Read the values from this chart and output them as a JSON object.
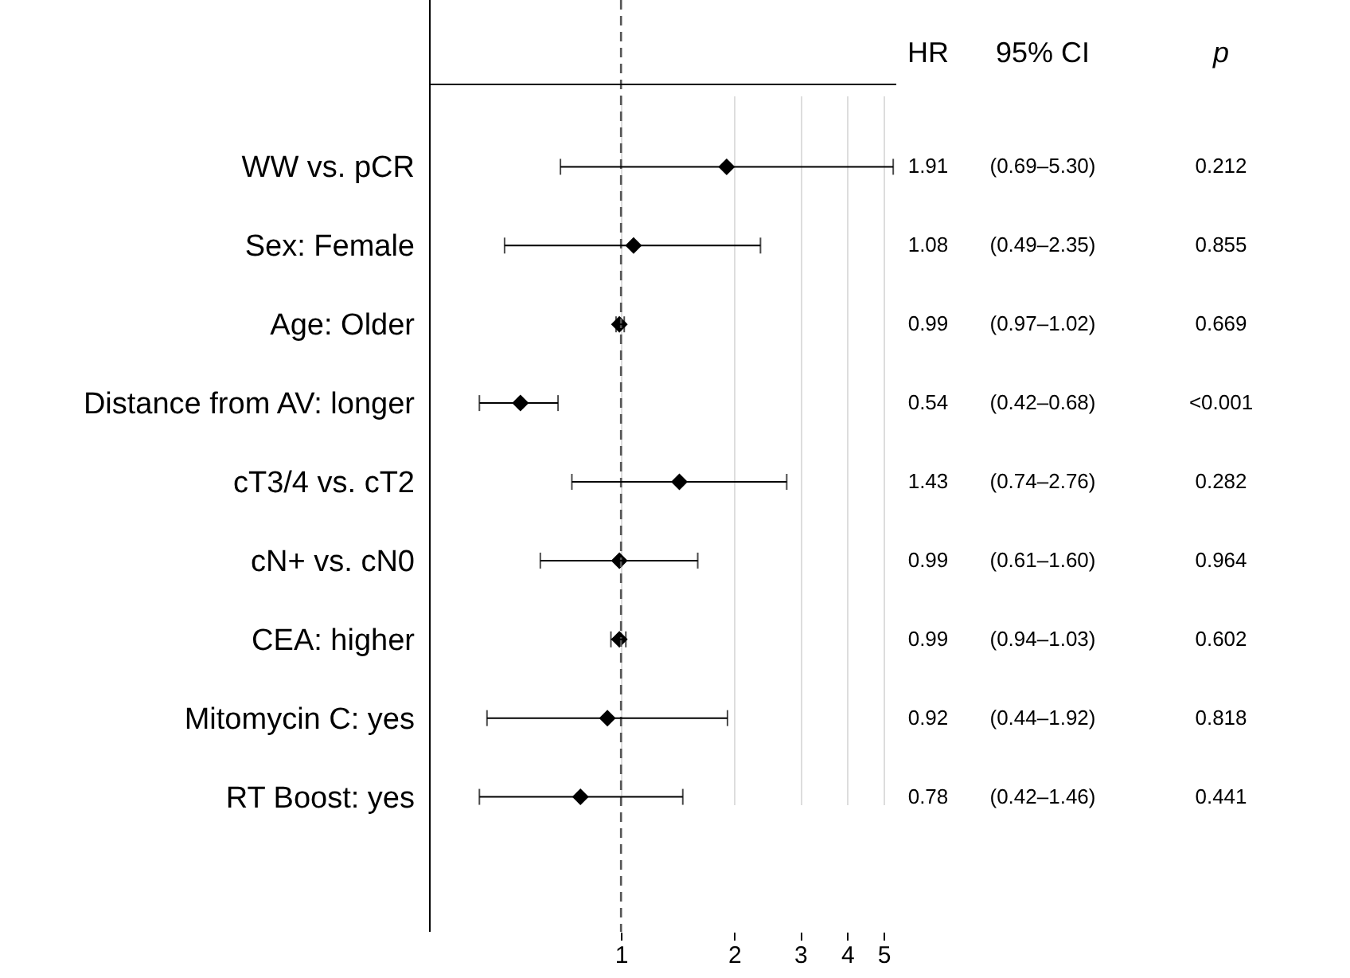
{
  "chart_data": {
    "type": "scatter",
    "orientation": "horizontal",
    "marker": "diamond",
    "grid": "x",
    "log": "x",
    "categories": [
      "WW vs. pCR",
      "Sex: Female",
      "Age: Older",
      "Distance from AV: longer",
      "cT3/4 vs. cT2",
      "cN+ vs. cN0",
      "CEA: higher",
      "Mitomycin C: yes",
      "RT Boost: yes"
    ],
    "series": [
      {
        "color": "#000000",
        "values": [
          1.91,
          1.08,
          0.99,
          0.54,
          1.43,
          0.99,
          0.99,
          0.92,
          0.78
        ],
        "errors": [
          [
            0.69,
            5.3
          ],
          [
            0.49,
            2.35
          ],
          [
            0.97,
            1.02
          ],
          [
            0.42,
            0.68
          ],
          [
            0.74,
            2.76
          ],
          [
            0.61,
            1.6
          ],
          [
            0.94,
            1.03
          ],
          [
            0.44,
            1.92
          ],
          [
            0.42,
            1.46
          ]
        ],
        "value_labels": [
          "1.91",
          "1.08",
          "0.99",
          "0.54",
          "1.43",
          "0.99",
          "0.99",
          "0.92",
          "0.78"
        ]
      }
    ],
    "xlim": [
      0.31,
      5.4
    ],
    "xticks": [
      1,
      2,
      3,
      4,
      5
    ],
    "ref_lines": [
      {
        "axis": "x",
        "value": 1,
        "line_style": "dashed",
        "color": "#555555"
      }
    ],
    "annotations": [
      "HR",
      "95% CI",
      "p",
      "(0.69–5.30)",
      "(0.49–2.35)",
      "(0.97–1.02)",
      "(0.42–0.68)",
      "(0.74–2.76)",
      "(0.61–1.60)",
      "(0.94–1.03)",
      "(0.44–1.92)",
      "(0.42–1.46)",
      "0.212",
      "0.855",
      "0.669",
      "<0.001",
      "0.282",
      "0.964",
      "0.602",
      "0.818",
      "0.441"
    ]
  }
}
